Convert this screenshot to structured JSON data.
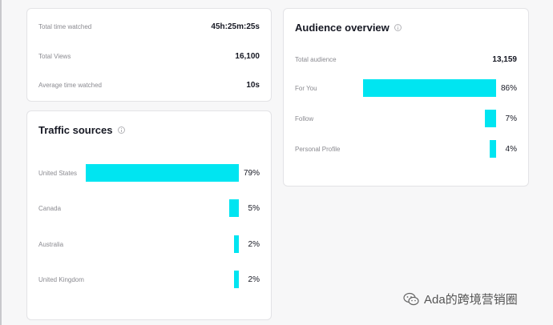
{
  "summary": {
    "rows": [
      {
        "label": "Total time watched",
        "value": "45h:25m:25s"
      },
      {
        "label": "Total Views",
        "value": "16,100"
      },
      {
        "label": "Average time watched",
        "value": "10s"
      }
    ]
  },
  "traffic": {
    "title": "Traffic sources",
    "items": [
      {
        "label": "United States",
        "pct_text": "79%",
        "pct": 79
      },
      {
        "label": "Canada",
        "pct_text": "5%",
        "pct": 5
      },
      {
        "label": "Australia",
        "pct_text": "2%",
        "pct": 2
      },
      {
        "label": "United Kingdom",
        "pct_text": "2%",
        "pct": 2
      }
    ]
  },
  "audience": {
    "title": "Audience overview",
    "total_label": "Total audience",
    "total_value": "13,159",
    "items": [
      {
        "label": "For You",
        "pct_text": "86%",
        "pct": 86
      },
      {
        "label": "Follow",
        "pct_text": "7%",
        "pct": 7
      },
      {
        "label": "Personal Profile",
        "pct_text": "4%",
        "pct": 4
      }
    ]
  },
  "watermark": {
    "text": "Ada的跨境营销圈",
    "icon": "wechat-icon"
  },
  "colors": {
    "bar": "#00e5f1",
    "card_bg": "#ffffff",
    "page_bg": "#f7f7f8"
  }
}
